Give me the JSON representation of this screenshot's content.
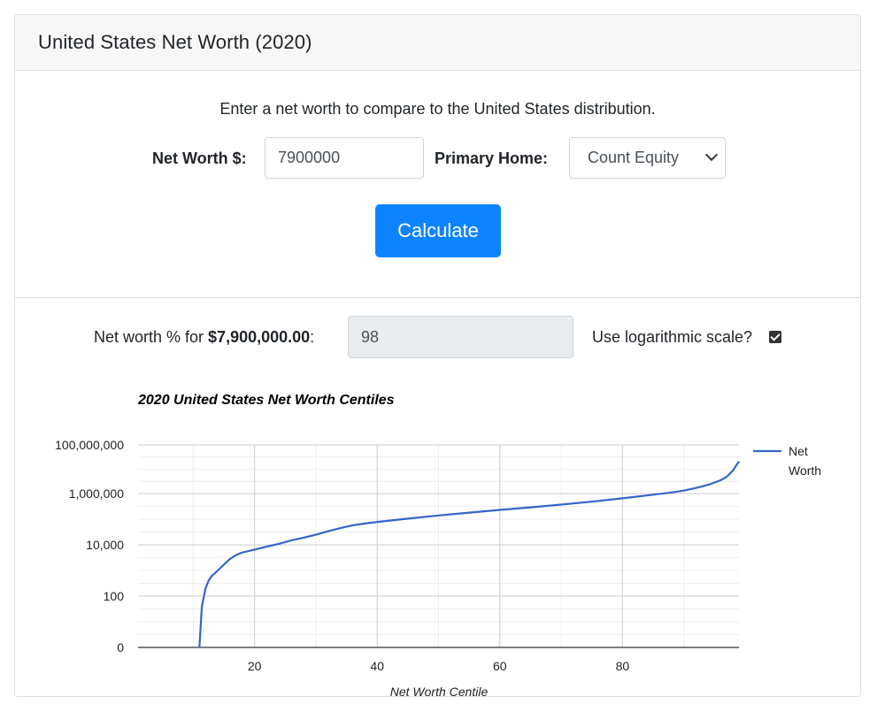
{
  "header": {
    "title": "United States Net Worth (2020)"
  },
  "form": {
    "intro": "Enter a net worth to compare to the United States distribution.",
    "net_worth_label": "Net Worth $:",
    "net_worth_value": "7900000",
    "primary_home_label": "Primary Home:",
    "primary_home_selected": "Count Equity",
    "calculate_label": "Calculate"
  },
  "result": {
    "prefix": "Net worth % for ",
    "amount": "$7,900,000.00",
    "suffix": ":",
    "percentile": "98",
    "log_label": "Use logarithmic scale?",
    "log_checked": true
  },
  "colors": {
    "line": "#3366cc",
    "button": "#0d84ff"
  },
  "chart_data": {
    "type": "line",
    "title": "2020 United States Net Worth Centiles",
    "xlabel": "Net Worth Centile",
    "ylabel": "",
    "y_scale": "log",
    "y_ticks": [
      "0",
      "100",
      "10,000",
      "1,000,000",
      "100,000,000"
    ],
    "x_ticks": [
      20,
      40,
      60,
      80
    ],
    "xlim": [
      1,
      99
    ],
    "legend": {
      "position": "right",
      "entries": [
        "Net Worth"
      ]
    },
    "series": [
      {
        "name": "Net Worth",
        "x": [
          11,
          11.4,
          12,
          12.5,
          13,
          14,
          15,
          16,
          17,
          18,
          20,
          22,
          24,
          26,
          28,
          30,
          32,
          34,
          36,
          38,
          40,
          45,
          50,
          55,
          60,
          65,
          70,
          75,
          80,
          85,
          88,
          90,
          92,
          94,
          96,
          97,
          98,
          99
        ],
        "y": [
          0,
          80,
          200,
          400,
          600,
          1000,
          1700,
          2800,
          4000,
          5000,
          6500,
          8500,
          11000,
          15000,
          19000,
          25000,
          34000,
          45000,
          58000,
          68000,
          78000,
          105000,
          140000,
          180000,
          230000,
          290000,
          370000,
          480000,
          650000,
          900000,
          1100000,
          1300000,
          1650000,
          2200000,
          3300000,
          4500000,
          7900000,
          18000000
        ]
      }
    ]
  }
}
